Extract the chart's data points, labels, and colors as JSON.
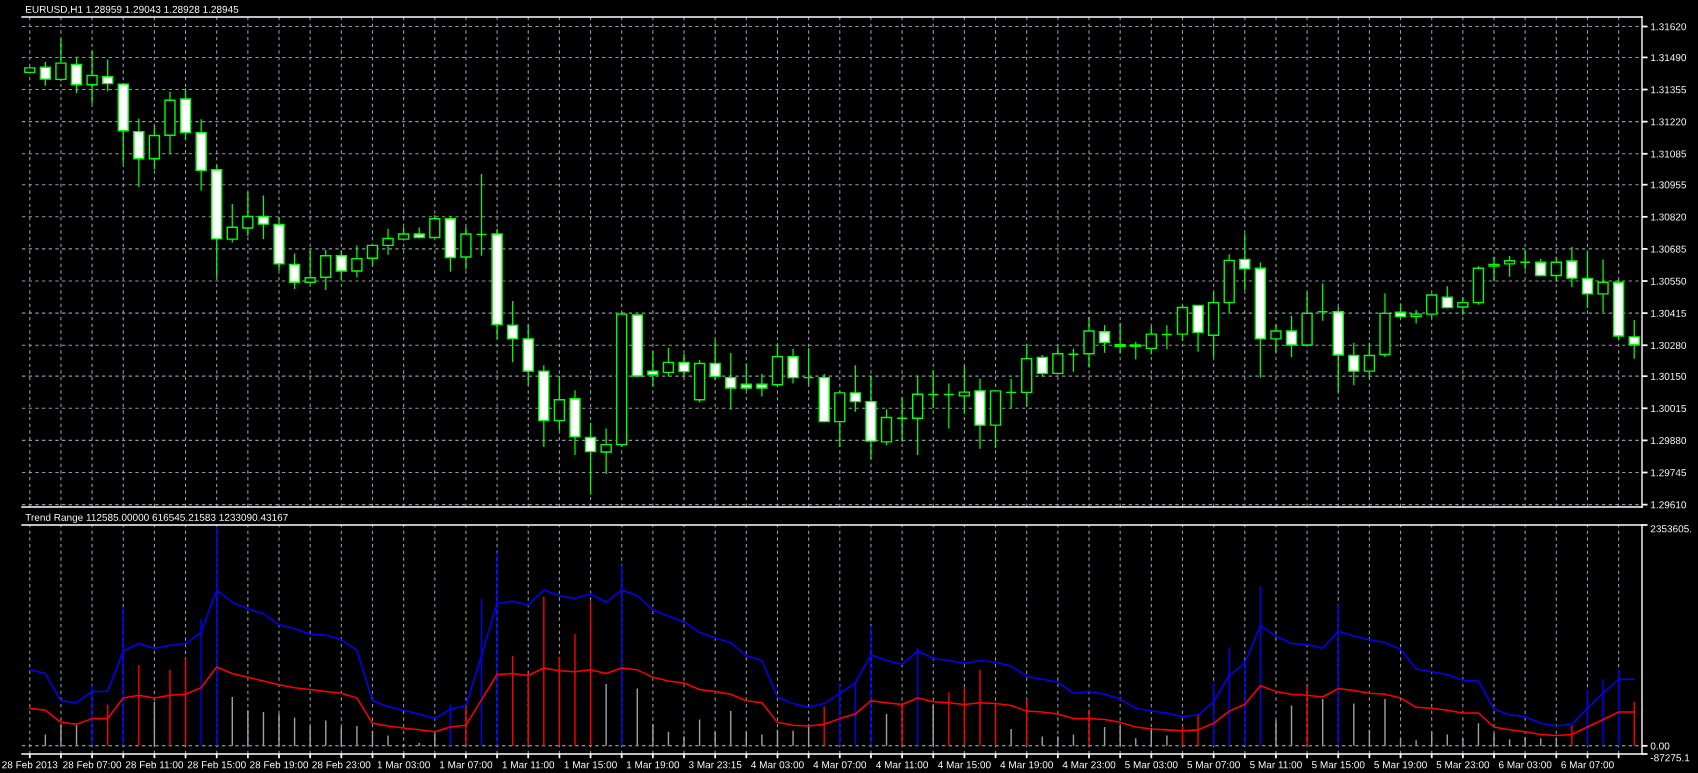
{
  "chart_data": [
    {
      "type": "candlestick",
      "title": "EURUSD,H1 1.28959 1.29043 1.28928 1.28945",
      "color": "#00ff00",
      "tick_labels": "y",
      "grid": true,
      "categories": [
        null,
        null,
        null,
        null,
        null,
        null,
        null,
        null,
        null,
        null,
        null,
        null,
        null,
        null,
        null,
        null,
        null,
        null,
        null,
        null,
        null,
        null,
        null,
        null,
        null,
        null,
        null,
        null,
        null,
        null,
        null,
        null,
        null,
        null,
        null,
        null,
        null,
        null,
        null,
        null,
        null,
        null,
        null,
        null,
        null,
        null,
        null,
        null,
        null,
        null,
        null,
        null,
        null,
        null,
        null,
        null,
        null,
        null,
        null,
        null,
        null,
        null,
        null,
        null,
        null,
        null,
        null,
        null,
        null,
        null,
        null,
        null,
        null,
        null,
        null,
        null,
        null,
        null,
        null,
        null,
        null,
        null,
        null,
        null,
        null,
        null,
        null,
        null,
        null,
        null,
        null,
        null,
        null,
        null,
        null,
        null,
        null,
        null,
        null,
        null,
        null,
        null,
        null,
        null
      ],
      "ohlc": [
        [
          1.31427,
          1.31446,
          1.31427,
          1.31446
        ],
        [
          1.31449,
          1.31469,
          1.31374,
          1.31399
        ],
        [
          1.31398,
          1.31565,
          1.31393,
          1.31466
        ],
        [
          1.31461,
          1.31491,
          1.31343,
          1.31375
        ],
        [
          1.31375,
          1.31516,
          1.31298,
          1.31414
        ],
        [
          1.31409,
          1.31479,
          1.3135,
          1.3138
        ],
        [
          1.31378,
          1.3138,
          1.31046,
          1.31182
        ],
        [
          1.31178,
          1.31231,
          1.30948,
          1.31064
        ],
        [
          1.31064,
          1.312,
          1.31022,
          1.31162
        ],
        [
          1.31163,
          1.31343,
          1.31086,
          1.3131
        ],
        [
          1.31315,
          1.31357,
          1.31145,
          1.31174
        ],
        [
          1.31174,
          1.31227,
          1.30933,
          1.31015
        ],
        [
          1.31018,
          1.31034,
          1.30567,
          1.30727
        ],
        [
          1.30726,
          1.30871,
          1.30715,
          1.30776
        ],
        [
          1.30773,
          1.30921,
          1.30742,
          1.30821
        ],
        [
          1.30821,
          1.30907,
          1.30729,
          1.30789
        ],
        [
          1.30788,
          1.30815,
          1.30598,
          1.30622
        ],
        [
          1.3062,
          1.30663,
          1.30519,
          1.30545
        ],
        [
          1.30545,
          1.30678,
          1.30542,
          1.30564
        ],
        [
          1.30566,
          1.30678,
          1.30515,
          1.30656
        ],
        [
          1.30656,
          1.30675,
          1.30555,
          1.30592
        ],
        [
          1.30592,
          1.30697,
          1.30567,
          1.30644
        ],
        [
          1.30646,
          1.307,
          1.30616,
          1.307
        ],
        [
          1.307,
          1.30767,
          1.30663,
          1.30729
        ],
        [
          1.30726,
          1.30773,
          1.30723,
          1.30748
        ],
        [
          1.30748,
          1.30772,
          1.30733,
          1.30733
        ],
        [
          1.30733,
          1.30824,
          1.30733,
          1.30812
        ],
        [
          1.30812,
          1.30822,
          1.30592,
          1.30649
        ],
        [
          1.30651,
          1.30775,
          1.30601,
          1.30748
        ],
        [
          1.30746,
          1.30997,
          1.30659,
          1.30746
        ],
        [
          1.30748,
          1.30767,
          1.3031,
          1.30367
        ],
        [
          1.30364,
          1.30463,
          1.30211,
          1.30307
        ],
        [
          1.30307,
          1.30364,
          1.30117,
          1.30171
        ],
        [
          1.30171,
          1.30193,
          1.29855,
          1.29963
        ],
        [
          1.29963,
          1.30149,
          1.29925,
          1.30051
        ],
        [
          1.30055,
          1.30088,
          1.29821,
          1.29895
        ],
        [
          1.29892,
          1.29951,
          1.29655,
          1.29833
        ],
        [
          1.29831,
          1.29927,
          1.29741,
          1.29862
        ],
        [
          1.29862,
          1.30417,
          1.29855,
          1.30411
        ],
        [
          1.30407,
          1.30407,
          1.30151,
          1.30151
        ],
        [
          1.30171,
          1.30252,
          1.3011,
          1.30156
        ],
        [
          1.30166,
          1.30266,
          1.30151,
          1.30208
        ],
        [
          1.30208,
          1.30241,
          1.30151,
          1.30169
        ],
        [
          1.30051,
          1.30215,
          1.30043,
          1.30203
        ],
        [
          1.30203,
          1.303,
          1.30137,
          1.30149
        ],
        [
          1.30144,
          1.30245,
          1.30011,
          1.301
        ],
        [
          1.30116,
          1.30201,
          1.30092,
          1.301
        ],
        [
          1.30116,
          1.30156,
          1.30067,
          1.301
        ],
        [
          1.30114,
          1.30285,
          1.3011,
          1.30232
        ],
        [
          1.30232,
          1.30263,
          1.30122,
          1.30144
        ],
        [
          1.30144,
          1.30266,
          1.30114,
          1.30144
        ],
        [
          1.30144,
          1.30156,
          1.29959,
          1.29959
        ],
        [
          1.29959,
          1.30085,
          1.29855,
          1.3008
        ],
        [
          1.3008,
          1.30193,
          1.30003,
          1.30043
        ],
        [
          1.30043,
          1.30147,
          1.29806,
          1.29877
        ],
        [
          1.29874,
          1.30008,
          1.29862,
          1.29976
        ],
        [
          1.29973,
          1.30058,
          1.29877,
          1.29973
        ],
        [
          1.29973,
          1.30149,
          1.29821,
          1.30074
        ],
        [
          1.30073,
          1.30171,
          1.30018,
          1.30073
        ],
        [
          1.30073,
          1.30117,
          1.29933,
          1.30073
        ],
        [
          1.30067,
          1.30193,
          1.29996,
          1.30083
        ],
        [
          1.30088,
          1.30137,
          1.29847,
          1.29944
        ],
        [
          1.29944,
          1.30088,
          1.2985,
          1.30088
        ],
        [
          1.30082,
          1.30137,
          1.30018,
          1.30082
        ],
        [
          1.30082,
          1.30282,
          1.30026,
          1.30224
        ],
        [
          1.30229,
          1.30236,
          1.30151,
          1.30162
        ],
        [
          1.30162,
          1.3027,
          1.30159,
          1.30244
        ],
        [
          1.30242,
          1.30263,
          1.30171,
          1.30242
        ],
        [
          1.30244,
          1.30396,
          1.30189,
          1.3034
        ],
        [
          1.30337,
          1.30362,
          1.30251,
          1.30292
        ],
        [
          1.30282,
          1.30371,
          1.30251,
          1.30276
        ],
        [
          1.30281,
          1.30292,
          1.30223,
          1.30276
        ],
        [
          1.30267,
          1.30355,
          1.30245,
          1.30327
        ],
        [
          1.30325,
          1.30361,
          1.30266,
          1.30325
        ],
        [
          1.30327,
          1.30447,
          1.303,
          1.30439
        ],
        [
          1.30447,
          1.30447,
          1.30255,
          1.30334
        ],
        [
          1.30322,
          1.305,
          1.30233,
          1.30459
        ],
        [
          1.30459,
          1.3066,
          1.30419,
          1.30637
        ],
        [
          1.30641,
          1.30745,
          1.30515,
          1.30601
        ],
        [
          1.30604,
          1.30625,
          1.30147,
          1.30307
        ],
        [
          1.30307,
          1.30364,
          1.30252,
          1.3034
        ],
        [
          1.3034,
          1.30401,
          1.30233,
          1.30281
        ],
        [
          1.30281,
          1.305,
          1.30281,
          1.30414
        ],
        [
          1.30421,
          1.30537,
          1.30386,
          1.30421
        ],
        [
          1.30421,
          1.30438,
          1.30085,
          1.30239
        ],
        [
          1.30237,
          1.30288,
          1.30114,
          1.30171
        ],
        [
          1.30171,
          1.30288,
          1.30144,
          1.30237
        ],
        [
          1.30241,
          1.30496,
          1.30233,
          1.30414
        ],
        [
          1.30419,
          1.30453,
          1.30399,
          1.30401
        ],
        [
          1.30401,
          1.30426,
          1.30374,
          1.30411
        ],
        [
          1.30411,
          1.30491,
          1.30399,
          1.30491
        ],
        [
          1.30482,
          1.30525,
          1.30438,
          1.30438
        ],
        [
          1.30441,
          1.30478,
          1.30411,
          1.30459
        ],
        [
          1.30459,
          1.3061,
          1.30453,
          1.30604
        ],
        [
          1.30613,
          1.30649,
          1.30552,
          1.3062
        ],
        [
          1.30622,
          1.30653,
          1.30571,
          1.30635
        ],
        [
          1.30629,
          1.30678,
          1.30601,
          1.30629
        ],
        [
          1.30629,
          1.30641,
          1.30573,
          1.30573
        ],
        [
          1.30573,
          1.30649,
          1.30552,
          1.30629
        ],
        [
          1.30634,
          1.3069,
          1.30527,
          1.30562
        ],
        [
          1.30561,
          1.30672,
          1.30438,
          1.30496
        ],
        [
          1.30496,
          1.30638,
          1.30421,
          1.30545
        ],
        [
          1.30545,
          1.30552,
          1.30304,
          1.30319
        ],
        [
          1.30315,
          1.30384,
          1.30226,
          1.30282
        ]
      ],
      "colors": [
        "#000000",
        "#ffffff",
        "#000000",
        "#ffffff",
        "#000000",
        "#ffffff",
        "#ffffff",
        "#ffffff",
        "#000000",
        "#000000",
        "#ffffff",
        "#ffffff",
        "#ffffff",
        "#000000",
        "#000000",
        "#ffffff",
        "#ffffff",
        "#ffffff",
        "#000000",
        "#000000",
        "#ffffff",
        "#000000",
        "#000000",
        "#000000",
        "#000000",
        "#ffffff",
        "#000000",
        "#ffffff",
        "#000000",
        "#00ff00",
        "#ffffff",
        "#ffffff",
        "#ffffff",
        "#ffffff",
        "#000000",
        "#ffffff",
        "#ffffff",
        "#000000",
        "#000000",
        "#ffffff",
        "#ffffff",
        "#000000",
        "#ffffff",
        "#000000",
        "#ffffff",
        "#ffffff",
        "#ffffff",
        "#ffffff",
        "#000000",
        "#ffffff",
        "#00ff00",
        "#ffffff",
        "#000000",
        "#ffffff",
        "#ffffff",
        "#000000",
        "#00ff00",
        "#000000",
        "#00ff00",
        "#00ff00",
        "#000000",
        "#ffffff",
        "#000000",
        "#00ff00",
        "#000000",
        "#ffffff",
        "#000000",
        "#00ff00",
        "#000000",
        "#ffffff",
        "#ffffff",
        "#ffffff",
        "#000000",
        "#00ff00",
        "#000000",
        "#ffffff",
        "#000000",
        "#000000",
        "#ffffff",
        "#ffffff",
        "#000000",
        "#ffffff",
        "#000000",
        "#00ff00",
        "#ffffff",
        "#ffffff",
        "#000000",
        "#000000",
        "#ffffff",
        "#000000",
        "#000000",
        "#ffffff",
        "#000000",
        "#000000",
        "#000000",
        "#000000",
        "#00ff00",
        "#ffffff",
        "#000000",
        "#ffffff",
        "#ffffff",
        "#000000",
        "#ffffff",
        "#ffffff"
      ],
      "ylim": [
        1.296,
        1.3166
      ],
      "yticks": [
        {
          "value": 1.3162,
          "label": "1.31620"
        },
        {
          "value": 1.3149,
          "label": "1.31490"
        },
        {
          "value": 1.31355,
          "label": "1.31355"
        },
        {
          "value": 1.3122,
          "label": "1.31220"
        },
        {
          "value": 1.31085,
          "label": "1.31085"
        },
        {
          "value": 1.30955,
          "label": "1.30955"
        },
        {
          "value": 1.3082,
          "label": "1.30820"
        },
        {
          "value": 1.30685,
          "label": "1.30685"
        },
        {
          "value": 1.3055,
          "label": "1.30550"
        },
        {
          "value": 1.30415,
          "label": "1.30415"
        },
        {
          "value": 1.3028,
          "label": "1.30280"
        },
        {
          "value": 1.3015,
          "label": "1.30150"
        },
        {
          "value": 1.30015,
          "label": "1.30015"
        },
        {
          "value": 1.2988,
          "label": "1.29880"
        },
        {
          "value": 1.29745,
          "label": "1.29745"
        },
        {
          "value": 1.2961,
          "label": "1.29610"
        }
      ]
    },
    {
      "type": "bar",
      "title": "Trend Range 112585.00000 616545.21583 1233090.43167",
      "grid": "x",
      "categories": [
        "28 Feb 2013",
        null,
        null,
        null,
        "28 Feb 07:00",
        null,
        null,
        null,
        "28 Feb 11:00",
        null,
        null,
        null,
        "28 Feb 15:00",
        null,
        null,
        null,
        "28 Feb 19:00",
        null,
        null,
        null,
        "28 Feb 23:00",
        null,
        null,
        null,
        "1 Mar 03:00",
        null,
        null,
        null,
        "1 Mar 07:00",
        null,
        null,
        null,
        "1 Mar 11:00",
        null,
        null,
        null,
        "1 Mar 15:00",
        null,
        null,
        null,
        "1 Mar 19:00",
        null,
        null,
        null,
        "3 Mar 23:15",
        null,
        null,
        null,
        "4 Mar 03:00",
        null,
        null,
        null,
        "4 Mar 07:00",
        null,
        null,
        null,
        "4 Mar 11:00",
        null,
        null,
        null,
        "4 Mar 15:00",
        null,
        null,
        null,
        "4 Mar 19:00",
        null,
        null,
        null,
        "4 Mar 23:00",
        null,
        null,
        null,
        "5 Mar 03:00",
        null,
        null,
        null,
        "5 Mar 07:00",
        null,
        null,
        null,
        "5 Mar 11:00",
        null,
        null,
        null,
        "5 Mar 15:00",
        null,
        null,
        null,
        "5 Mar 19:00",
        null,
        null,
        null,
        "5 Mar 23:00",
        null,
        null,
        null,
        "6 Mar 03:00",
        null,
        null,
        null,
        "6 Mar 07:00",
        null,
        null,
        null
      ],
      "series": [
        {
          "type": "bar",
          "values": [
            null,
            120000,
            220000,
            220000,
            650000,
            440000,
            1480000,
            860000,
            470000,
            810000,
            930000,
            1350000,
            2340000,
            520000,
            380000,
            360000,
            340000,
            300000,
            210000,
            270000,
            200000,
            210000,
            160000,
            110000,
            20000,
            30000,
            130000,
            440000,
            420000,
            1570000,
            2060000,
            960000,
            770000,
            1590000,
            950000,
            1190000,
            1540000,
            660000,
            1930000,
            610000,
            230000,
            150000,
            100000,
            280000,
            150000,
            370000,
            150000,
            120000,
            170000,
            160000,
            210000,
            420000,
            660000,
            680000,
            1280000,
            340000,
            460000,
            1040000,
            430000,
            570000,
            630000,
            810000,
            460000,
            180000,
            500000,
            100000,
            100000,
            120000,
            390000,
            200000,
            210000,
            80000,
            190000,
            110000,
            210000,
            330000,
            660000,
            1050000,
            910000,
            1700000,
            270000,
            430000,
            640000,
            500000,
            1510000,
            450000,
            170000,
            500000,
            80000,
            60000,
            150000,
            120000,
            80000,
            240000,
            130000,
            70000,
            90000,
            80000,
            80000,
            210000,
            600000,
            710000,
            810000,
            470000
          ],
          "colors": [
            null,
            "#a0a0a0",
            "#a0a0a0",
            "#a0a0a0",
            "#0000ff",
            "#ff0000",
            "#0000ff",
            "#ff0000",
            "#a0a0a0",
            "#ff0000",
            "#ff0000",
            "#0000ff",
            "#0000ff",
            "#a0a0a0",
            "#a0a0a0",
            "#a0a0a0",
            "#a0a0a0",
            "#a0a0a0",
            "#a0a0a0",
            "#a0a0a0",
            "#a0a0a0",
            "#a0a0a0",
            "#a0a0a0",
            "#a0a0a0",
            "#a0a0a0",
            "#a0a0a0",
            "#a0a0a0",
            "#0000ff",
            "#ff0000",
            "#0000ff",
            "#0000ff",
            "#ff0000",
            "#ff0000",
            "#ff0000",
            "#ff0000",
            "#ff0000",
            "#ff0000",
            "#a0a0a0",
            "#0000ff",
            "#a0a0a0",
            "#a0a0a0",
            "#a0a0a0",
            "#a0a0a0",
            "#a0a0a0",
            "#a0a0a0",
            "#a0a0a0",
            "#a0a0a0",
            "#a0a0a0",
            "#a0a0a0",
            "#a0a0a0",
            "#a0a0a0",
            "#ff0000",
            "#0000ff",
            "#0000ff",
            "#0000ff",
            "#a0a0a0",
            "#ff0000",
            "#0000ff",
            "#a0a0a0",
            "#ff0000",
            "#ff0000",
            "#ff0000",
            "#ff0000",
            "#a0a0a0",
            "#ff0000",
            "#a0a0a0",
            "#a0a0a0",
            "#a0a0a0",
            "#ff0000",
            "#a0a0a0",
            "#a0a0a0",
            "#a0a0a0",
            "#a0a0a0",
            "#a0a0a0",
            "#ff0000",
            "#ff0000",
            "#0000ff",
            "#0000ff",
            "#0000ff",
            "#0000ff",
            "#a0a0a0",
            "#a0a0a0",
            "#ff0000",
            "#a0a0a0",
            "#0000ff",
            "#a0a0a0",
            "#a0a0a0",
            "#a0a0a0",
            "#a0a0a0",
            "#a0a0a0",
            "#a0a0a0",
            "#a0a0a0",
            "#a0a0a0",
            "#a0a0a0",
            "#a0a0a0",
            "#a0a0a0",
            "#a0a0a0",
            "#a0a0a0",
            "#a0a0a0",
            "#ff0000",
            "#0000ff",
            "#0000ff",
            "#0000ff",
            "#ff0000"
          ]
        },
        {
          "type": "line",
          "color": "#ff0000",
          "values": [
            400000,
            380000,
            250000,
            230000,
            290000,
            290000,
            510000,
            540000,
            510000,
            540000,
            550000,
            620000,
            840000,
            770000,
            730000,
            690000,
            650000,
            620000,
            600000,
            580000,
            560000,
            510000,
            240000,
            210000,
            190000,
            170000,
            150000,
            200000,
            220000,
            490000,
            760000,
            770000,
            750000,
            830000,
            800000,
            790000,
            810000,
            770000,
            830000,
            810000,
            730000,
            690000,
            670000,
            600000,
            580000,
            550000,
            480000,
            460000,
            250000,
            220000,
            210000,
            230000,
            290000,
            340000,
            480000,
            460000,
            440000,
            510000,
            470000,
            460000,
            440000,
            460000,
            450000,
            430000,
            370000,
            360000,
            340000,
            290000,
            290000,
            280000,
            250000,
            200000,
            180000,
            170000,
            160000,
            170000,
            240000,
            370000,
            440000,
            640000,
            580000,
            550000,
            540000,
            520000,
            610000,
            590000,
            560000,
            550000,
            510000,
            410000,
            400000,
            380000,
            350000,
            350000,
            200000,
            170000,
            150000,
            120000,
            110000,
            120000,
            200000,
            280000,
            360000,
            360000
          ]
        },
        {
          "type": "line",
          "color": "#0000ff",
          "values": [
            810000,
            770000,
            480000,
            460000,
            580000,
            580000,
            1010000,
            1090000,
            1040000,
            1070000,
            1090000,
            1210000,
            1660000,
            1530000,
            1460000,
            1410000,
            1290000,
            1250000,
            1190000,
            1180000,
            1130000,
            1020000,
            480000,
            420000,
            380000,
            340000,
            290000,
            390000,
            430000,
            960000,
            1520000,
            1540000,
            1500000,
            1660000,
            1600000,
            1570000,
            1620000,
            1530000,
            1660000,
            1600000,
            1450000,
            1380000,
            1320000,
            1210000,
            1150000,
            1100000,
            960000,
            910000,
            520000,
            450000,
            410000,
            450000,
            560000,
            670000,
            970000,
            910000,
            870000,
            1010000,
            930000,
            910000,
            880000,
            910000,
            890000,
            850000,
            740000,
            710000,
            680000,
            560000,
            580000,
            550000,
            500000,
            400000,
            370000,
            350000,
            310000,
            330000,
            470000,
            750000,
            880000,
            1280000,
            1170000,
            1090000,
            1080000,
            1040000,
            1220000,
            1170000,
            1130000,
            1100000,
            1030000,
            820000,
            790000,
            760000,
            700000,
            690000,
            390000,
            330000,
            310000,
            240000,
            210000,
            230000,
            400000,
            560000,
            710000,
            710000
          ]
        }
      ],
      "ylim": [
        -87275.1,
        2353605
      ],
      "yticks": [
        {
          "value": 2353605,
          "label": "2353605."
        },
        {
          "value": 0,
          "label": "0.00"
        },
        {
          "value": -87275.1,
          "label": "-87275.1"
        }
      ],
      "ref_lines": [
        {
          "axis": "y",
          "value": 0,
          "line_style": "dashed",
          "color": "#b4bcc6"
        }
      ]
    }
  ]
}
